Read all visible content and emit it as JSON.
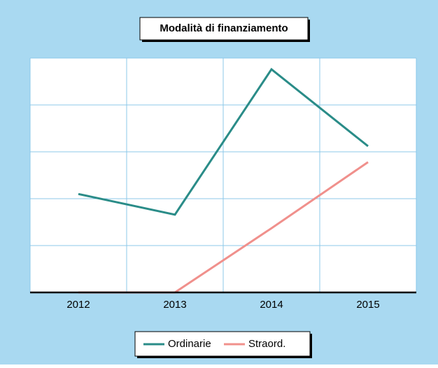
{
  "chart_data": {
    "type": "line",
    "title": "Modalità di finanziamento",
    "categories": [
      "2012",
      "2013",
      "2014",
      "2015"
    ],
    "series": [
      {
        "name": "Ordinarie",
        "color": "#2a8c88",
        "values": [
          2.1,
          1.66,
          4.76,
          3.12
        ]
      },
      {
        "name": "Straord.",
        "color": "#f0908c",
        "values": [
          0,
          0,
          1.37,
          2.78
        ]
      }
    ],
    "ylim": [
      0,
      5
    ],
    "yticks": [
      0,
      1,
      2,
      3,
      4,
      5
    ],
    "grid": true
  }
}
